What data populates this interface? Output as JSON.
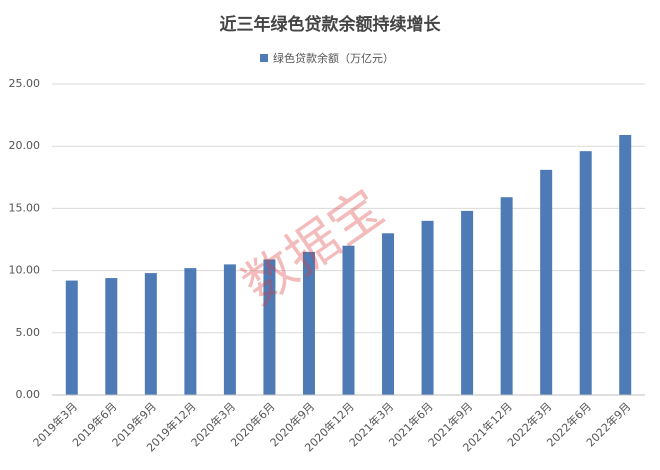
{
  "chart_data": {
    "type": "bar",
    "title": "近三年绿色贷款余额持续增长",
    "watermark": "数据宝",
    "categories": [
      "2019年3月",
      "2019年6月",
      "2019年9月",
      "2019年12月",
      "2020年3月",
      "2020年6月",
      "2020年9月",
      "2020年12月",
      "2021年3月",
      "2021年6月",
      "2021年9月",
      "2021年12月",
      "2022年3月",
      "2022年6月",
      "2022年9月"
    ],
    "series": [
      {
        "name": "绿色贷款余额（万亿元）",
        "color": "#4e7bb5",
        "values": [
          9.2,
          9.4,
          9.8,
          10.2,
          10.5,
          10.9,
          11.5,
          12.0,
          13.0,
          14.0,
          14.8,
          15.9,
          18.1,
          19.6,
          20.9
        ]
      }
    ],
    "ylim": [
      0,
      25
    ],
    "yticks": [
      {
        "value": 0,
        "label": "0.00"
      },
      {
        "value": 5,
        "label": "5.00"
      },
      {
        "value": 10,
        "label": "10.00"
      },
      {
        "value": 15,
        "label": "15.00"
      },
      {
        "value": 20,
        "label": "20.00"
      },
      {
        "value": 25,
        "label": "25.00"
      }
    ],
    "grid": true
  }
}
